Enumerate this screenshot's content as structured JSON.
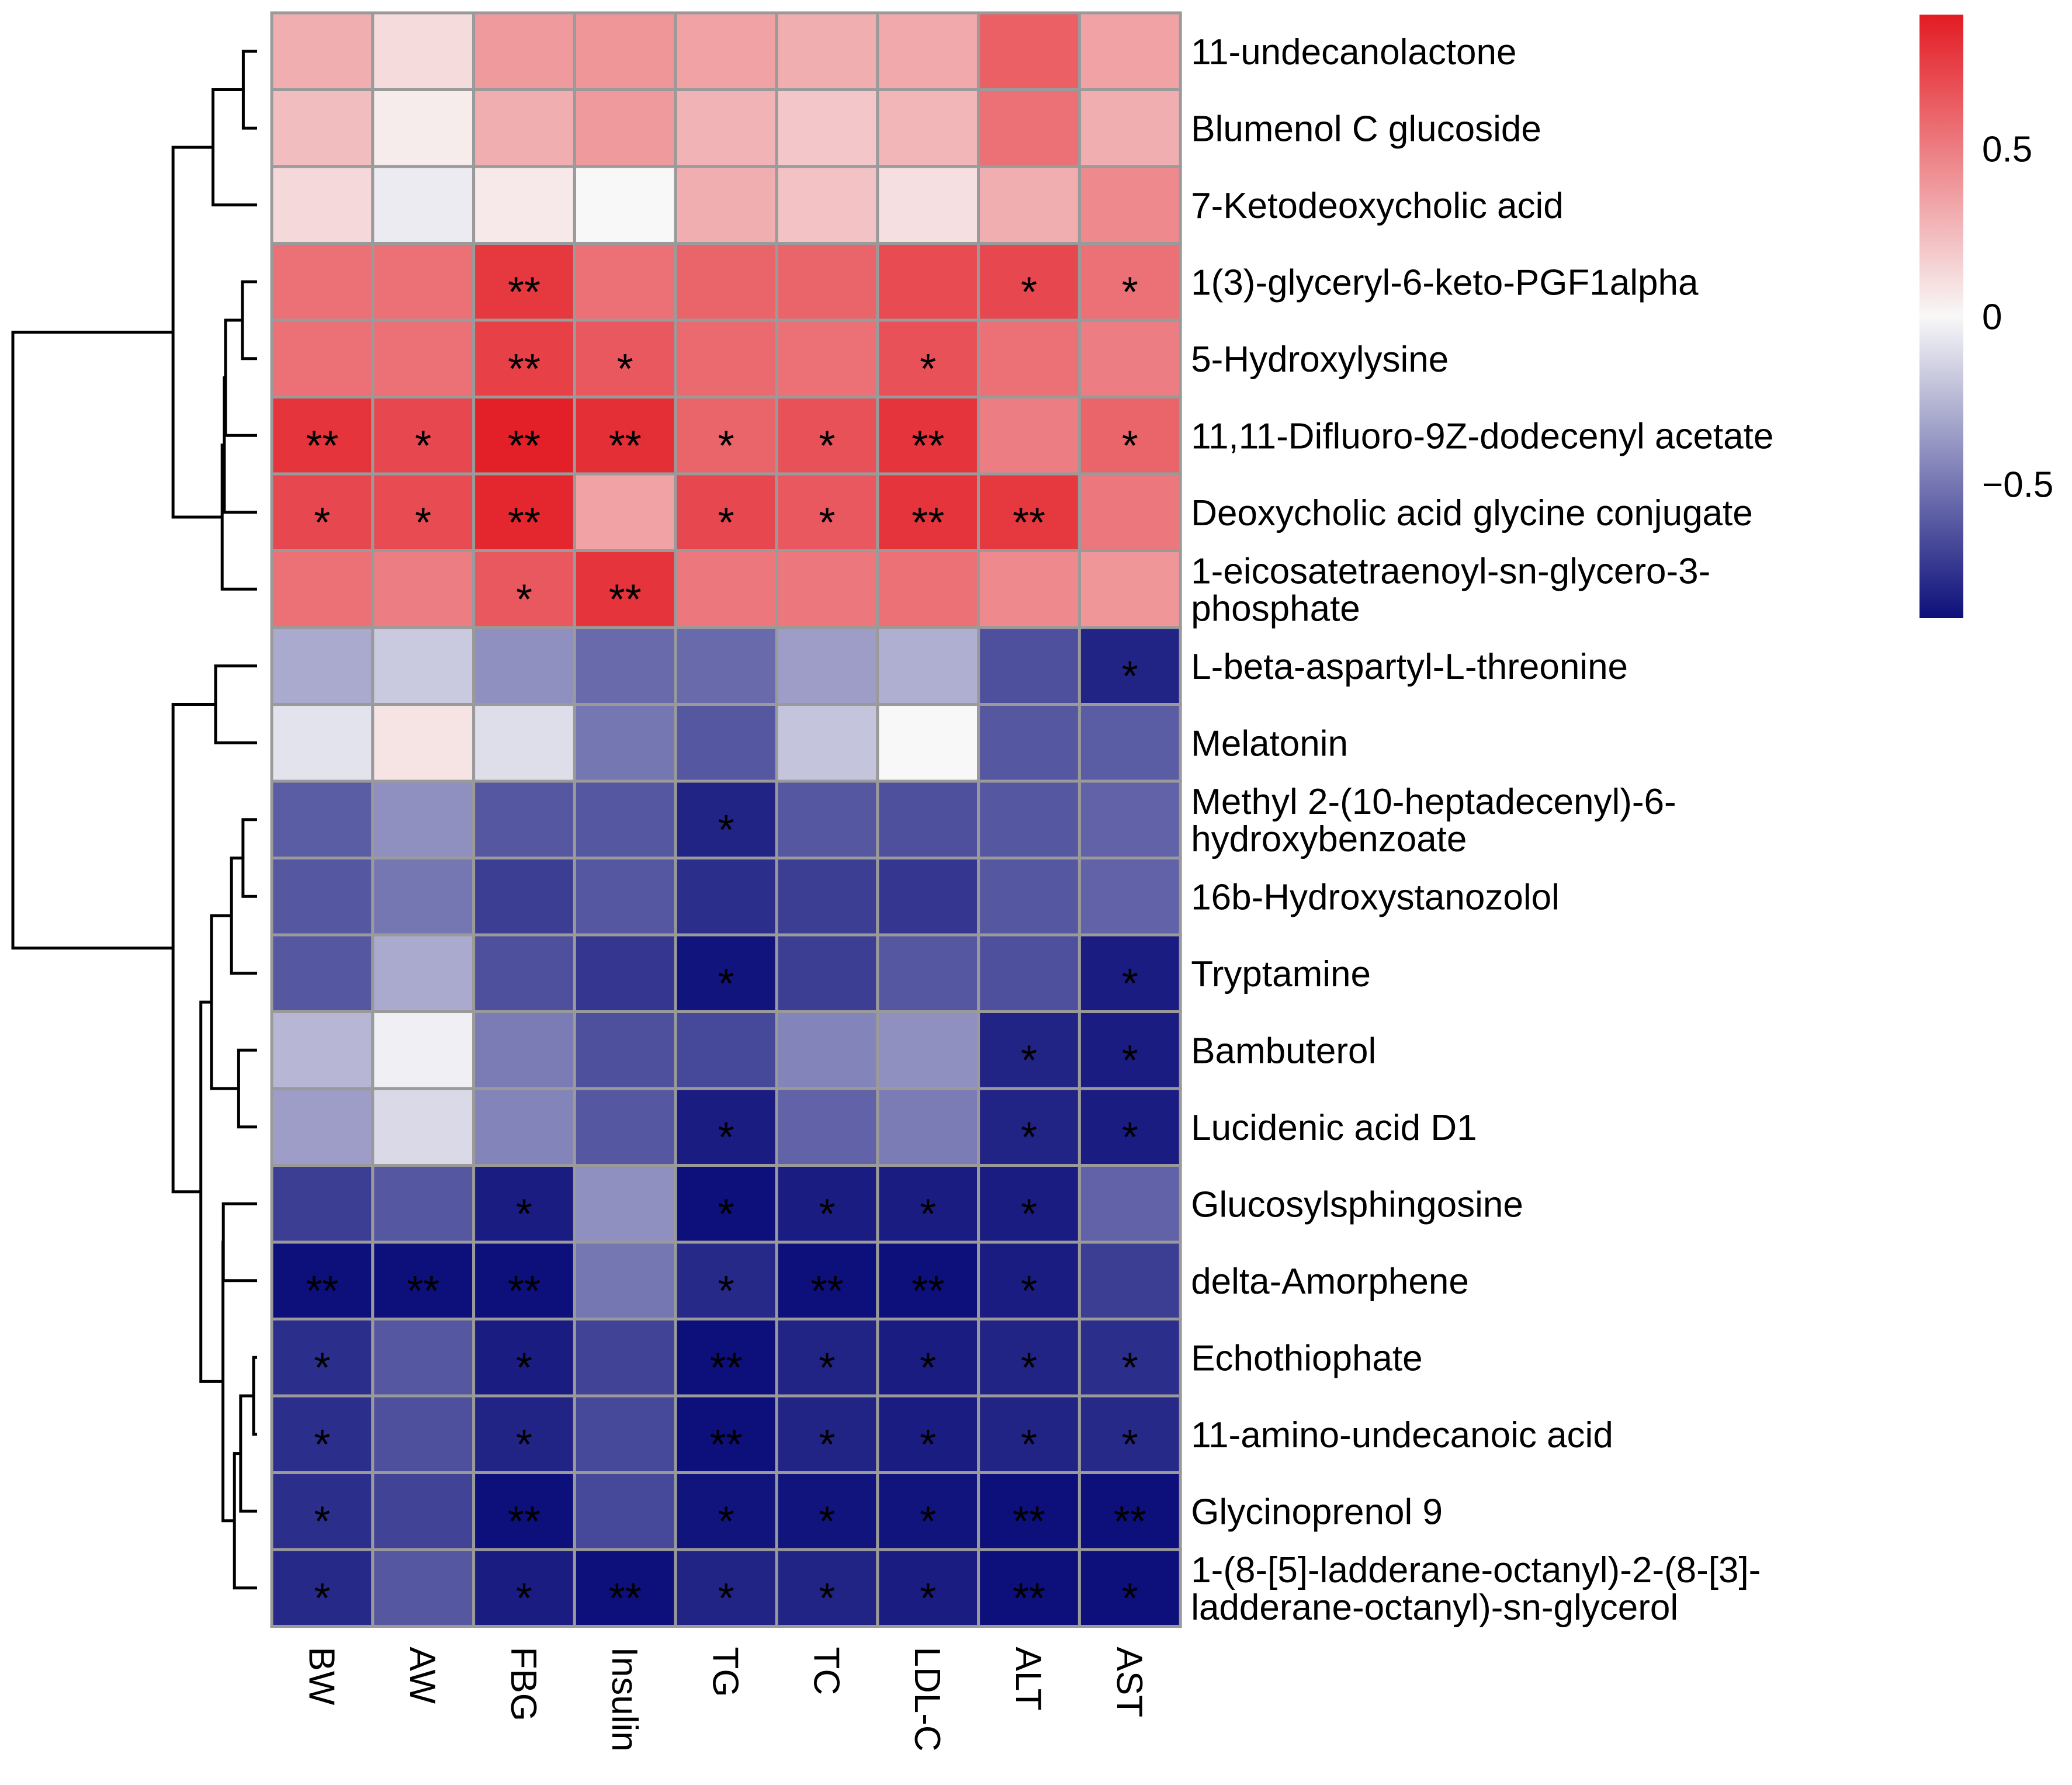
{
  "chart_data": {
    "type": "heatmap",
    "columns": [
      "BW",
      "AW",
      "FBG",
      "Insulin",
      "TG",
      "TC",
      "LDL-C",
      "ALT",
      "AST"
    ],
    "rows": [
      {
        "label": "11-undecanolactone",
        "values": [
          0.3,
          0.12,
          0.38,
          0.4,
          0.35,
          0.3,
          0.32,
          0.62,
          0.35
        ],
        "stars": [
          "",
          "",
          "",
          "",
          "",
          "",
          "",
          "",
          ""
        ]
      },
      {
        "label": "Blumenol C glucoside",
        "values": [
          0.24,
          0.05,
          0.3,
          0.38,
          0.28,
          0.2,
          0.27,
          0.55,
          0.3
        ],
        "stars": [
          "",
          "",
          "",
          "",
          "",
          "",
          "",
          "",
          ""
        ]
      },
      {
        "label": "7-Ketodeoxycholic acid",
        "values": [
          0.13,
          -0.05,
          0.06,
          0.0,
          0.3,
          0.22,
          0.1,
          0.3,
          0.45
        ],
        "stars": [
          "",
          "",
          "",
          "",
          "",
          "",
          "",
          "",
          ""
        ]
      },
      {
        "label": "1(3)-glyceryl-6-keto-PGF1alpha",
        "values": [
          0.55,
          0.55,
          0.78,
          0.55,
          0.6,
          0.6,
          0.7,
          0.72,
          0.55
        ],
        "stars": [
          "",
          "",
          "**",
          "",
          "",
          "",
          "",
          "*",
          "*"
        ]
      },
      {
        "label": "5-Hydroxylysine",
        "values": [
          0.55,
          0.55,
          0.75,
          0.65,
          0.58,
          0.55,
          0.68,
          0.55,
          0.5
        ],
        "stars": [
          "",
          "",
          "**",
          "*",
          "",
          "",
          "*",
          "",
          ""
        ]
      },
      {
        "label": "11,11-Difluoro-9Z-dodecenyl acetate",
        "values": [
          0.8,
          0.72,
          0.88,
          0.82,
          0.6,
          0.68,
          0.8,
          0.5,
          0.6
        ],
        "stars": [
          "**",
          "*",
          "**",
          "**",
          "*",
          "*",
          "**",
          "",
          "*"
        ]
      },
      {
        "label": "Deoxycholic acid glycine conjugate",
        "values": [
          0.72,
          0.7,
          0.85,
          0.35,
          0.72,
          0.65,
          0.8,
          0.78,
          0.52
        ],
        "stars": [
          "*",
          "*",
          "**",
          "",
          "*",
          "*",
          "**",
          "**",
          ""
        ]
      },
      {
        "label": "1-eicosatetraenoyl-sn-glycero-3-phosphate",
        "values": [
          0.55,
          0.5,
          0.65,
          0.8,
          0.52,
          0.52,
          0.55,
          0.45,
          0.4
        ],
        "stars": [
          "",
          "",
          "*",
          "**",
          "",
          "",
          "",
          "",
          ""
        ]
      },
      {
        "label": "L-beta-aspartyl-L-threonine",
        "values": [
          -0.3,
          -0.18,
          -0.4,
          -0.55,
          -0.55,
          -0.35,
          -0.28,
          -0.65,
          -0.82
        ],
        "stars": [
          "",
          "",
          "",
          "",
          "",
          "",
          "",
          "",
          "*"
        ]
      },
      {
        "label": "Melatonin",
        "values": [
          -0.08,
          0.08,
          -0.1,
          -0.5,
          -0.62,
          -0.2,
          0.0,
          -0.62,
          -0.6
        ],
        "stars": [
          "",
          "",
          "",
          "",
          "",
          "",
          "",
          "",
          ""
        ]
      },
      {
        "label": "Methyl 2-(10-heptadecenyl)-6-hydroxybenzoate",
        "values": [
          -0.6,
          -0.4,
          -0.62,
          -0.62,
          -0.82,
          -0.62,
          -0.65,
          -0.62,
          -0.58
        ],
        "stars": [
          "",
          "",
          "",
          "",
          "*",
          "",
          "",
          "",
          ""
        ]
      },
      {
        "label": "16b-Hydroxystanozolol",
        "values": [
          -0.62,
          -0.5,
          -0.72,
          -0.62,
          -0.78,
          -0.72,
          -0.75,
          -0.62,
          -0.58
        ],
        "stars": [
          "",
          "",
          "",
          "",
          "",
          "",
          "",
          "",
          ""
        ]
      },
      {
        "label": "Tryptamine",
        "values": [
          -0.62,
          -0.3,
          -0.65,
          -0.75,
          -0.88,
          -0.72,
          -0.62,
          -0.65,
          -0.85
        ],
        "stars": [
          "",
          "",
          "",
          "",
          "*",
          "",
          "",
          "",
          "*"
        ]
      },
      {
        "label": "Bambuterol",
        "values": [
          -0.25,
          -0.03,
          -0.48,
          -0.65,
          -0.68,
          -0.45,
          -0.4,
          -0.82,
          -0.85
        ],
        "stars": [
          "",
          "",
          "",
          "",
          "",
          "",
          "",
          "*",
          "*"
        ]
      },
      {
        "label": "Lucidenic acid D1",
        "values": [
          -0.35,
          -0.12,
          -0.45,
          -0.62,
          -0.85,
          -0.58,
          -0.48,
          -0.82,
          -0.85
        ],
        "stars": [
          "",
          "",
          "",
          "",
          "*",
          "",
          "",
          "*",
          "*"
        ]
      },
      {
        "label": "Glucosylsphingosine",
        "values": [
          -0.72,
          -0.62,
          -0.85,
          -0.4,
          -0.9,
          -0.85,
          -0.85,
          -0.85,
          -0.58
        ],
        "stars": [
          "",
          "",
          "*",
          "",
          "*",
          "*",
          "*",
          "*",
          ""
        ]
      },
      {
        "label": "delta-Amorphene",
        "values": [
          -0.98,
          -0.92,
          -0.98,
          -0.5,
          -0.8,
          -0.98,
          -0.95,
          -0.85,
          -0.72
        ],
        "stars": [
          "**",
          "**",
          "**",
          "",
          "*",
          "**",
          "**",
          "*",
          ""
        ]
      },
      {
        "label": "Echothiophate",
        "values": [
          -0.78,
          -0.62,
          -0.85,
          -0.7,
          -0.95,
          -0.82,
          -0.85,
          -0.82,
          -0.78
        ],
        "stars": [
          "*",
          "",
          "*",
          "",
          "**",
          "*",
          "*",
          "*",
          "*"
        ]
      },
      {
        "label": "11-amino-undecanoic acid",
        "values": [
          -0.78,
          -0.65,
          -0.82,
          -0.68,
          -0.95,
          -0.82,
          -0.85,
          -0.82,
          -0.8
        ],
        "stars": [
          "*",
          "",
          "*",
          "",
          "**",
          "*",
          "*",
          "*",
          "*"
        ]
      },
      {
        "label": "Glycinoprenol 9",
        "values": [
          -0.78,
          -0.7,
          -0.92,
          -0.68,
          -0.88,
          -0.88,
          -0.88,
          -0.92,
          -0.95
        ],
        "stars": [
          "*",
          "",
          "**",
          "",
          "*",
          "*",
          "*",
          "**",
          "**"
        ]
      },
      {
        "label": "1-(8-[5]-ladderane-octanyl)-2-(8-[3]-ladderane-octanyl)-sn-glycerol",
        "values": [
          -0.8,
          -0.62,
          -0.85,
          -0.95,
          -0.82,
          -0.82,
          -0.85,
          -0.95,
          -0.9
        ],
        "stars": [
          "*",
          "",
          "*",
          "**",
          "*",
          "*",
          "*",
          "**",
          "*"
        ]
      }
    ],
    "row_labels_display": [
      [
        "11-undecanolactone"
      ],
      [
        "Blumenol C glucoside"
      ],
      [
        "7-Ketodeoxycholic acid"
      ],
      [
        "1(3)-glyceryl-6-keto-PGF1alpha"
      ],
      [
        "5-Hydroxylysine"
      ],
      [
        "11,11-Difluoro-9Z-dodecenyl acetate"
      ],
      [
        "Deoxycholic acid glycine conjugate"
      ],
      [
        "1-eicosatetraenoyl-sn-glycero-3-",
        "phosphate"
      ],
      [
        "L-beta-aspartyl-L-threonine"
      ],
      [
        "Melatonin"
      ],
      [
        "Methyl 2-(10-heptadecenyl)-6-",
        "hydroxybenzoate"
      ],
      [
        "16b-Hydroxystanozolol"
      ],
      [
        "Tryptamine"
      ],
      [
        "Bambuterol"
      ],
      [
        "Lucidenic acid D1"
      ],
      [
        "Glucosylsphingosine"
      ],
      [
        "delta-Amorphene"
      ],
      [
        "Echothiophate"
      ],
      [
        "11-amino-undecanoic acid"
      ],
      [
        "Glycinoprenol 9"
      ],
      [
        "1-(8-[5]-ladderane-octanyl)-2-(8-[3]-",
        "ladderane-octanyl)-sn-glycerol"
      ]
    ],
    "colorbar": {
      "range": [
        -0.9,
        0.9
      ],
      "ticks": [
        0.5,
        0,
        -0.5
      ],
      "tick_labels": [
        "0.5",
        "0",
        "−0.5"
      ],
      "colors": {
        "low": "#0d0f7a",
        "mid": "#f8f8f8",
        "high": "#e31b23"
      }
    },
    "row_dendrogram": true,
    "grid_color": "#9a9a9a"
  }
}
